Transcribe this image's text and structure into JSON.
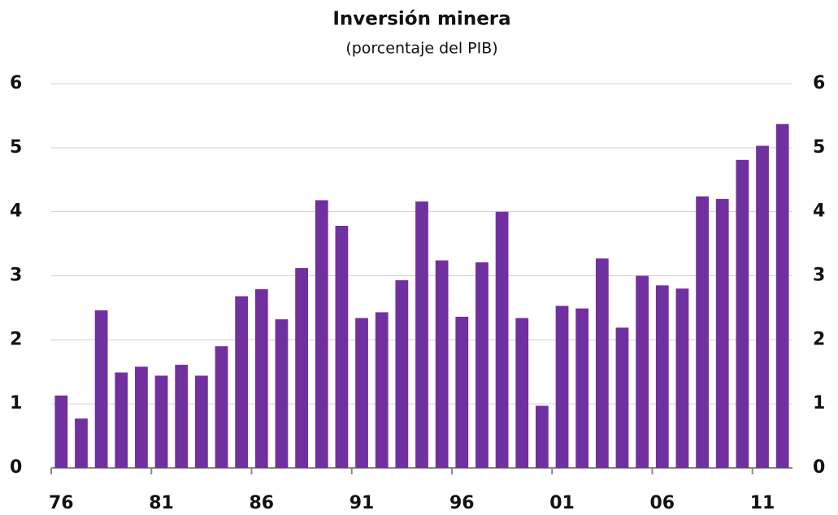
{
  "chart_data": {
    "type": "bar",
    "title": "Inversión minera",
    "subtitle": "(porcentaje del PIB)",
    "categories": [
      "76",
      null,
      null,
      null,
      null,
      "81",
      null,
      null,
      null,
      null,
      "86",
      null,
      null,
      null,
      null,
      "91",
      null,
      null,
      null,
      null,
      "96",
      null,
      null,
      null,
      null,
      "01",
      null,
      null,
      null,
      null,
      "06",
      null,
      null,
      null,
      null,
      "11",
      null
    ],
    "values": [
      1.13,
      0.77,
      2.46,
      1.49,
      1.58,
      1.44,
      1.61,
      1.44,
      1.9,
      2.68,
      2.79,
      2.32,
      3.12,
      4.18,
      3.78,
      2.34,
      2.43,
      2.93,
      4.16,
      3.24,
      2.36,
      3.21,
      4.0,
      2.34,
      0.97,
      2.53,
      2.49,
      3.27,
      2.19,
      3.0,
      2.85,
      2.8,
      4.24,
      4.2,
      4.81,
      5.03,
      5.37
    ],
    "color": "#7030a0",
    "ylim": [
      0,
      6
    ],
    "yticks": [
      0,
      1,
      2,
      3,
      4,
      5,
      6
    ],
    "grid": true
  }
}
